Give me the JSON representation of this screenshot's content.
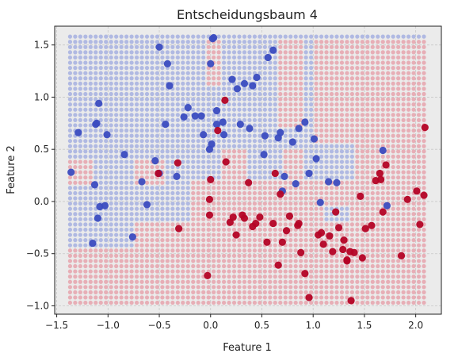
{
  "chart_data": {
    "type": "scatter",
    "title": "Entscheidungsbaum 4",
    "xlabel": "Feature 1",
    "ylabel": "Feature 2",
    "xlim": [
      -1.52,
      2.25
    ],
    "ylim": [
      -1.08,
      1.68
    ],
    "xticks": [
      -1.5,
      -1.0,
      -0.5,
      0.0,
      0.5,
      1.0,
      1.5,
      2.0
    ],
    "yticks": [
      -1.0,
      -0.5,
      0.0,
      0.5,
      1.0,
      1.5
    ],
    "xtick_labels": [
      "−1.5",
      "−1.0",
      "−0.5",
      "0.0",
      "0.5",
      "1.0",
      "1.5",
      "2.0"
    ],
    "ytick_labels": [
      "−1.0",
      "−0.5",
      "0.0",
      "0.5",
      "1.0",
      "1.5"
    ],
    "grid": true,
    "colors": {
      "class_0": "#3b4cc0",
      "class_1": "#b40426",
      "grid_blue": "#a6b0e0",
      "grid_red": "#e6a3ad",
      "background": "#ebebeb"
    },
    "decision_grid": {
      "x_range": [
        -1.37,
        2.1
      ],
      "y_range": [
        -0.97,
        1.57
      ],
      "step": 0.05,
      "regions_class_1": [
        {
          "x": [
            -1.37,
            2.1
          ],
          "y": [
            -0.97,
            -0.43
          ]
        },
        {
          "x": [
            -0.72,
            2.1
          ],
          "y": [
            -0.43,
            -0.18
          ]
        },
        {
          "x": [
            -0.3,
            2.1
          ],
          "y": [
            -0.18,
            0.18
          ]
        },
        {
          "x": [
            0.12,
            0.35
          ],
          "y": [
            0.18,
            0.52
          ]
        },
        {
          "x": [
            -0.73,
            -0.45
          ],
          "y": [
            0.18,
            0.38
          ]
        },
        {
          "x": [
            -1.37,
            -1.15
          ],
          "y": [
            0.18,
            0.38
          ]
        },
        {
          "x": [
            0.7,
            0.88
          ],
          "y": [
            0.18,
            0.48
          ]
        },
        {
          "x": [
            1.43,
            2.1
          ],
          "y": [
            0.18,
            1.57
          ]
        },
        {
          "x": [
            -0.05,
            0.1
          ],
          "y": [
            1.12,
            1.57
          ]
        },
        {
          "x": [
            0.68,
            0.88
          ],
          "y": [
            0.7,
            1.57
          ]
        },
        {
          "x": [
            1.0,
            1.43
          ],
          "y": [
            0.55,
            1.57
          ]
        }
      ],
      "regions_class_0": [
        {
          "x": [
            1.12,
            1.35
          ],
          "y": [
            -0.18,
            -0.05
          ]
        },
        {
          "x": [
            -0.28,
            -0.18
          ],
          "y": [
            -0.18,
            0.18
          ]
        }
      ]
    },
    "series": [
      {
        "class": 0,
        "x": [
          -1.36,
          -1.29,
          -1.15,
          -1.13,
          -1.12,
          -1.11,
          -1.09,
          -1.1,
          -1.08,
          -1.03,
          -1.01,
          -0.84,
          -0.76,
          -0.67,
          -0.62,
          -0.54,
          -0.5,
          -0.5,
          -0.44,
          -0.42,
          -0.4,
          -0.33,
          -0.26,
          -0.22,
          -0.15,
          -0.09,
          -0.07,
          -0.01,
          0.0,
          0.01,
          0.03,
          0.02,
          0.06,
          0.06,
          0.12,
          0.13,
          0.21,
          0.26,
          0.29,
          0.33,
          0.38,
          0.41,
          0.45,
          0.52,
          0.53,
          0.56,
          0.61,
          0.66,
          0.68,
          0.7,
          0.72,
          0.8,
          0.83,
          0.86,
          0.92,
          0.96,
          1.01,
          1.03,
          1.07,
          1.15,
          1.23,
          1.68,
          1.72
        ],
        "y": [
          0.28,
          0.66,
          -0.4,
          0.16,
          0.74,
          0.75,
          0.94,
          -0.16,
          -0.05,
          -0.04,
          0.64,
          0.45,
          -0.34,
          0.19,
          -0.03,
          0.39,
          1.48,
          0.27,
          0.74,
          1.32,
          1.11,
          0.24,
          0.81,
          0.9,
          0.82,
          0.82,
          0.64,
          0.5,
          1.32,
          0.55,
          1.57,
          1.56,
          0.87,
          0.74,
          0.76,
          0.64,
          1.17,
          1.08,
          0.74,
          1.13,
          0.7,
          1.11,
          1.19,
          0.45,
          0.63,
          1.38,
          1.45,
          0.61,
          0.66,
          0.1,
          0.24,
          0.57,
          0.17,
          0.7,
          0.76,
          0.27,
          0.6,
          0.41,
          -0.01,
          0.19,
          0.18,
          0.49,
          -0.04
        ]
      },
      {
        "class": 1,
        "x": [
          -0.51,
          -0.32,
          -0.31,
          -0.03,
          -0.01,
          0.0,
          -0.01,
          0.07,
          0.14,
          0.15,
          0.19,
          0.22,
          0.25,
          0.31,
          0.33,
          0.37,
          0.41,
          0.44,
          0.48,
          0.55,
          0.61,
          0.63,
          0.66,
          0.68,
          0.7,
          0.74,
          0.77,
          0.85,
          0.86,
          0.88,
          0.92,
          0.96,
          1.05,
          1.08,
          1.1,
          1.16,
          1.19,
          1.22,
          1.25,
          1.29,
          1.3,
          1.33,
          1.33,
          1.36,
          1.37,
          1.4,
          1.46,
          1.48,
          1.51,
          1.57,
          1.61,
          1.65,
          1.66,
          1.68,
          1.71,
          1.86,
          1.92,
          2.01,
          2.04,
          2.08,
          2.09
        ],
        "y": [
          0.27,
          0.37,
          -0.26,
          -0.71,
          0.02,
          0.21,
          -0.13,
          0.68,
          0.97,
          0.38,
          -0.2,
          -0.15,
          -0.32,
          -0.13,
          -0.16,
          0.18,
          -0.24,
          -0.21,
          -0.15,
          -0.39,
          -0.21,
          0.27,
          -0.61,
          0.07,
          -0.39,
          -0.28,
          -0.14,
          -0.23,
          -0.21,
          -0.49,
          -0.69,
          -0.92,
          -0.32,
          -0.3,
          -0.41,
          -0.33,
          -0.48,
          -0.1,
          -0.25,
          -0.46,
          -0.37,
          -0.56,
          -0.57,
          -0.48,
          -0.95,
          -0.49,
          0.05,
          -0.54,
          -0.26,
          -0.23,
          0.2,
          0.27,
          0.21,
          -0.1,
          0.35,
          -0.52,
          0.02,
          0.1,
          -0.22,
          0.06,
          0.71
        ]
      }
    ]
  }
}
